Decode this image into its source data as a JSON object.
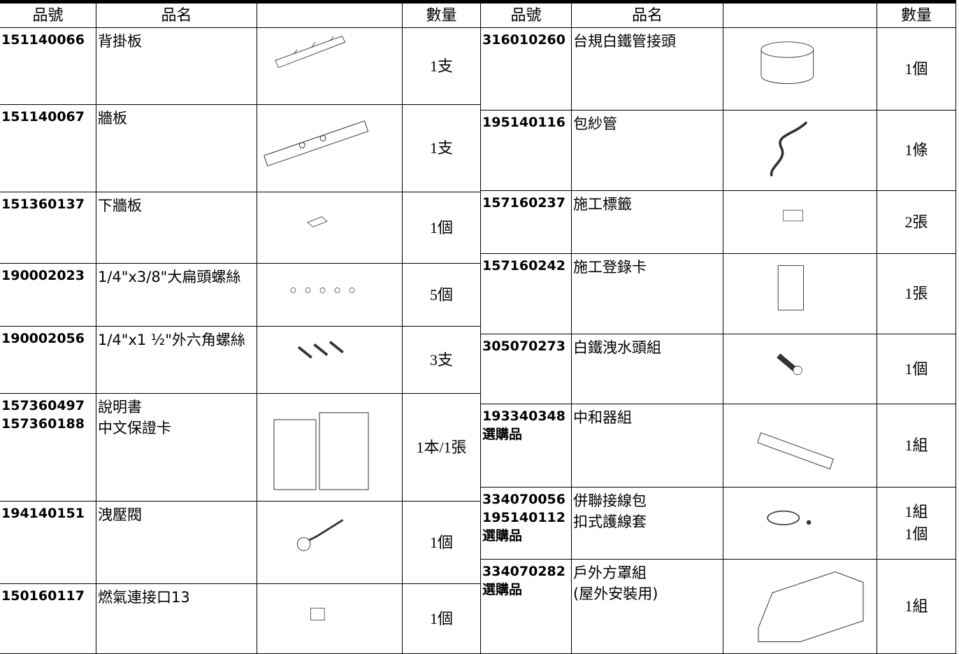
{
  "header": {
    "left": [
      "品號",
      "品名",
      "數量"
    ],
    "right": [
      "品號",
      "品名",
      "數量"
    ]
  },
  "left_rows": [
    {
      "codes": [
        "151140066"
      ],
      "names": [
        "背掛板"
      ],
      "qty": [
        "1支"
      ]
    },
    {
      "codes": [
        "151140067"
      ],
      "names": [
        "牆板"
      ],
      "qty": [
        "1支"
      ]
    },
    {
      "codes": [
        "151360137"
      ],
      "names": [
        "下牆板"
      ],
      "qty": [
        "1個"
      ]
    },
    {
      "codes": [
        "190002023"
      ],
      "names": [
        "1/4\"x3/8\"大扁頭螺絲"
      ],
      "qty": [
        "5個"
      ]
    },
    {
      "codes": [
        "190002056"
      ],
      "names": [
        "1/4\"x1 ½\"外六角螺絲"
      ],
      "qty": [
        "3支"
      ]
    },
    {
      "codes": [
        "157360497",
        "157360188"
      ],
      "names": [
        "說明書",
        "中文保證卡"
      ],
      "qty": [
        "1本/1張"
      ]
    },
    {
      "codes": [
        "194140151"
      ],
      "names": [
        "洩壓閥"
      ],
      "qty": [
        "1個"
      ]
    },
    {
      "codes": [
        "150160117"
      ],
      "names": [
        "燃氣連接口13"
      ],
      "qty": [
        "1個"
      ]
    }
  ],
  "right_rows": [
    {
      "codes": [
        "316010260"
      ],
      "names": [
        "台規白鐵管接頭"
      ],
      "qty": [
        "1個"
      ]
    },
    {
      "codes": [
        "195140116"
      ],
      "names": [
        "包紗管"
      ],
      "qty": [
        "1條"
      ]
    },
    {
      "codes": [
        "157160237"
      ],
      "names": [
        "施工標籤"
      ],
      "qty": [
        "2張"
      ]
    },
    {
      "codes": [
        "157160242"
      ],
      "names": [
        "施工登錄卡"
      ],
      "qty": [
        "1張"
      ]
    },
    {
      "codes": [
        "305070273"
      ],
      "names": [
        "白鐵洩水頭組"
      ],
      "qty": [
        "1個"
      ]
    },
    {
      "codes": [
        "193340348",
        "選購品"
      ],
      "names": [
        "中和器組"
      ],
      "qty": [
        "1組"
      ]
    },
    {
      "codes": [
        "334070056",
        "195140112",
        "選購品"
      ],
      "names": [
        "併聯接線包",
        "扣式護線套"
      ],
      "qty": [
        "1組",
        "1個"
      ]
    },
    {
      "codes": [
        "334070282",
        "選購品"
      ],
      "names": [
        "戶外方罩組",
        "(屋外安裝用)"
      ],
      "qty": [
        "1組"
      ]
    }
  ]
}
